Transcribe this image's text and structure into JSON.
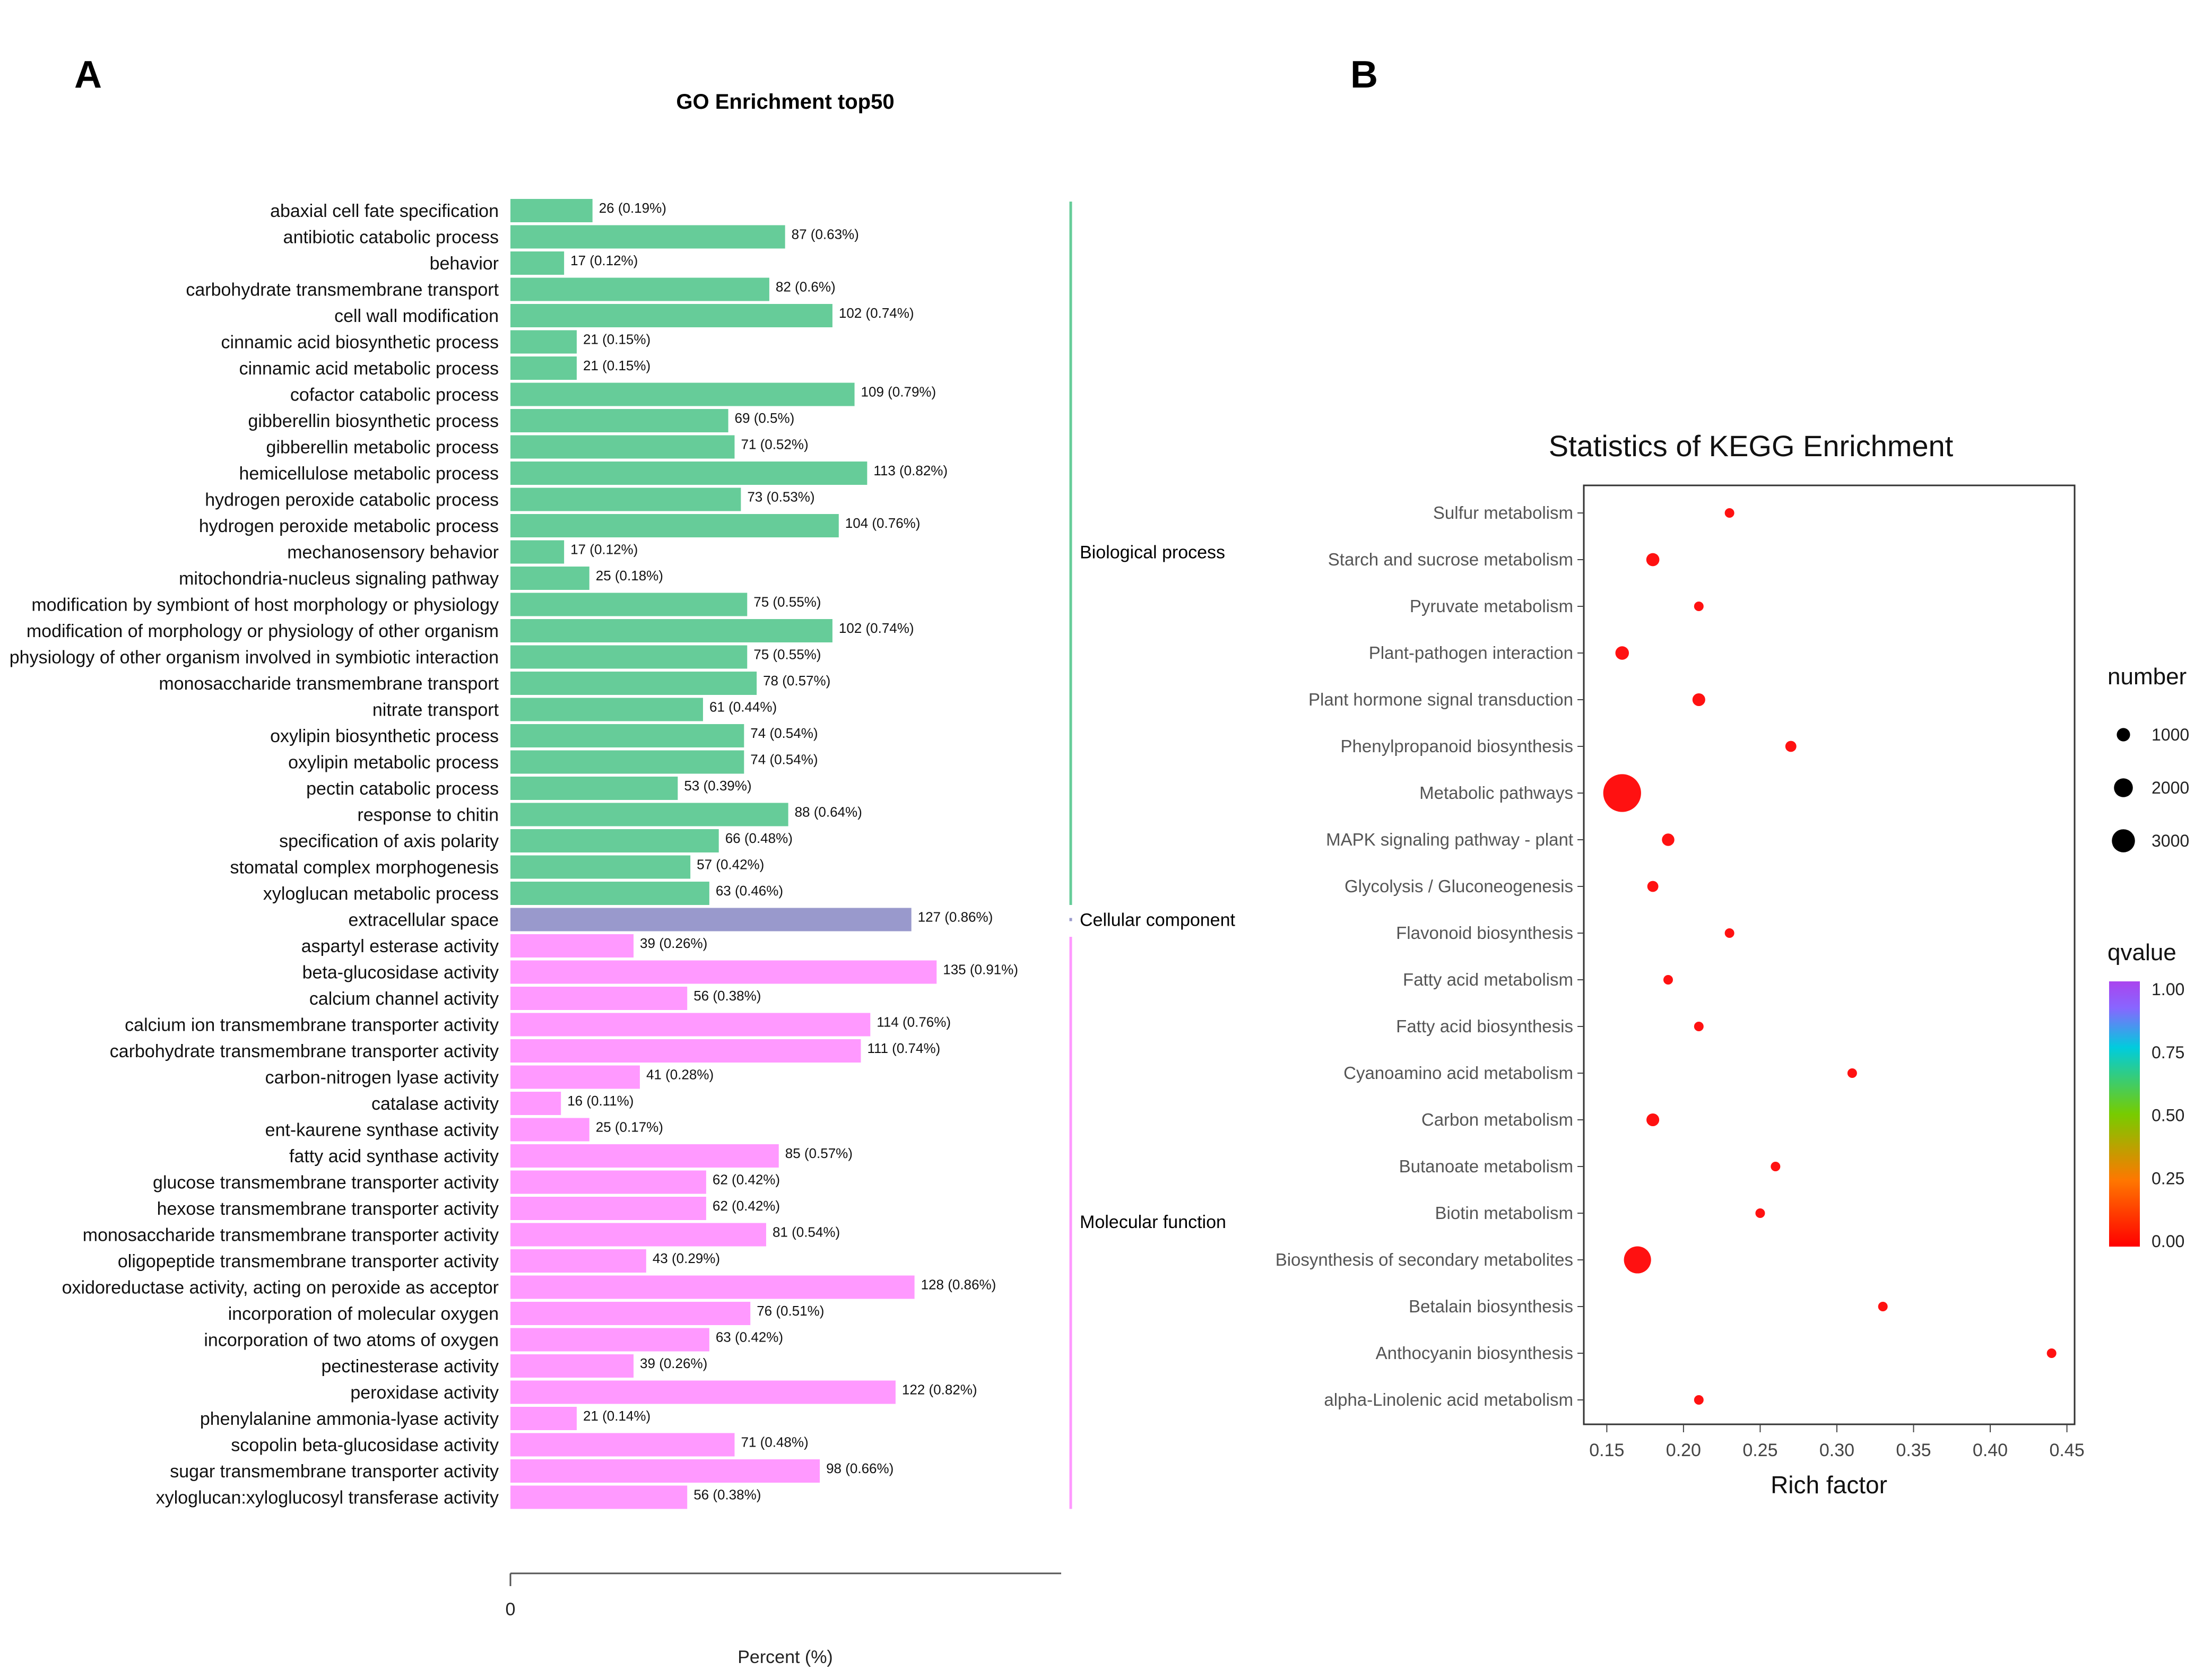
{
  "panels": {
    "a_label": "A",
    "b_label": "B"
  },
  "chart_data": [
    {
      "type": "bar",
      "orientation": "horizontal",
      "title": "GO Enrichment top50",
      "xlabel": "Percent (%)",
      "x_tick": "0",
      "colors": {
        "Biological process": "#66cc99",
        "Cellular component": "#9999cc",
        "Molecular function": "#ff99ff"
      },
      "groups": [
        {
          "name": "Biological process",
          "start": 0,
          "end": 26
        },
        {
          "name": "Cellular component",
          "start": 27,
          "end": 27
        },
        {
          "name": "Molecular function",
          "start": 28,
          "end": 49
        }
      ],
      "terms": [
        {
          "label": "abaxial cell fate specification",
          "category": "Biological process",
          "count": 26,
          "value_label": "26 (0.19%)"
        },
        {
          "label": "antibiotic catabolic process",
          "category": "Biological process",
          "count": 87,
          "value_label": "87 (0.63%)"
        },
        {
          "label": "behavior",
          "category": "Biological process",
          "count": 17,
          "value_label": "17 (0.12%)"
        },
        {
          "label": "carbohydrate transmembrane transport",
          "category": "Biological process",
          "count": 82,
          "value_label": "82 (0.6%)"
        },
        {
          "label": "cell wall modification",
          "category": "Biological process",
          "count": 102,
          "value_label": "102 (0.74%)"
        },
        {
          "label": "cinnamic acid biosynthetic process",
          "category": "Biological process",
          "count": 21,
          "value_label": "21 (0.15%)"
        },
        {
          "label": "cinnamic acid metabolic process",
          "category": "Biological process",
          "count": 21,
          "value_label": "21 (0.15%)"
        },
        {
          "label": "cofactor catabolic process",
          "category": "Biological process",
          "count": 109,
          "value_label": "109 (0.79%)"
        },
        {
          "label": "gibberellin biosynthetic process",
          "category": "Biological process",
          "count": 69,
          "value_label": "69 (0.5%)"
        },
        {
          "label": "gibberellin metabolic process",
          "category": "Biological process",
          "count": 71,
          "value_label": "71 (0.52%)"
        },
        {
          "label": "hemicellulose metabolic process",
          "category": "Biological process",
          "count": 113,
          "value_label": "113 (0.82%)"
        },
        {
          "label": "hydrogen peroxide catabolic process",
          "category": "Biological process",
          "count": 73,
          "value_label": "73 (0.53%)"
        },
        {
          "label": "hydrogen peroxide metabolic process",
          "category": "Biological process",
          "count": 104,
          "value_label": "104 (0.76%)"
        },
        {
          "label": "mechanosensory behavior",
          "category": "Biological process",
          "count": 17,
          "value_label": "17 (0.12%)"
        },
        {
          "label": "mitochondria-nucleus signaling pathway",
          "category": "Biological process",
          "count": 25,
          "value_label": "25 (0.18%)"
        },
        {
          "label": "modification by symbiont of host morphology or physiology",
          "category": "Biological process",
          "count": 75,
          "value_label": "75 (0.55%)"
        },
        {
          "label": "modification of morphology or physiology of other organism",
          "category": "Biological process",
          "count": 102,
          "value_label": "102 (0.74%)"
        },
        {
          "label": "physiology of other organism involved in symbiotic interaction",
          "category": "Biological process",
          "count": 75,
          "value_label": "75 (0.55%)"
        },
        {
          "label": "monosaccharide transmembrane transport",
          "category": "Biological process",
          "count": 78,
          "value_label": "78 (0.57%)"
        },
        {
          "label": "nitrate transport",
          "category": "Biological process",
          "count": 61,
          "value_label": "61 (0.44%)"
        },
        {
          "label": "oxylipin biosynthetic process",
          "category": "Biological process",
          "count": 74,
          "value_label": "74 (0.54%)"
        },
        {
          "label": "oxylipin metabolic process",
          "category": "Biological process",
          "count": 74,
          "value_label": "74 (0.54%)"
        },
        {
          "label": "pectin catabolic process",
          "category": "Biological process",
          "count": 53,
          "value_label": "53 (0.39%)"
        },
        {
          "label": "response to chitin",
          "category": "Biological process",
          "count": 88,
          "value_label": "88 (0.64%)"
        },
        {
          "label": "specification of axis polarity",
          "category": "Biological process",
          "count": 66,
          "value_label": "66 (0.48%)"
        },
        {
          "label": "stomatal complex morphogenesis",
          "category": "Biological process",
          "count": 57,
          "value_label": "57 (0.42%)"
        },
        {
          "label": "xyloglucan metabolic process",
          "category": "Biological process",
          "count": 63,
          "value_label": "63 (0.46%)"
        },
        {
          "label": "extracellular space",
          "category": "Cellular component",
          "count": 127,
          "value_label": "127 (0.86%)"
        },
        {
          "label": "aspartyl esterase activity",
          "category": "Molecular function",
          "count": 39,
          "value_label": "39 (0.26%)"
        },
        {
          "label": "beta-glucosidase activity",
          "category": "Molecular function",
          "count": 135,
          "value_label": "135 (0.91%)"
        },
        {
          "label": "calcium channel activity",
          "category": "Molecular function",
          "count": 56,
          "value_label": "56 (0.38%)"
        },
        {
          "label": "calcium ion transmembrane transporter activity",
          "category": "Molecular function",
          "count": 114,
          "value_label": "114 (0.76%)"
        },
        {
          "label": "carbohydrate transmembrane transporter activity",
          "category": "Molecular function",
          "count": 111,
          "value_label": "111 (0.74%)"
        },
        {
          "label": "carbon-nitrogen lyase activity",
          "category": "Molecular function",
          "count": 41,
          "value_label": "41 (0.28%)"
        },
        {
          "label": "catalase activity",
          "category": "Molecular function",
          "count": 16,
          "value_label": "16 (0.11%)"
        },
        {
          "label": "ent-kaurene synthase activity",
          "category": "Molecular function",
          "count": 25,
          "value_label": "25 (0.17%)"
        },
        {
          "label": "fatty acid synthase activity",
          "category": "Molecular function",
          "count": 85,
          "value_label": "85 (0.57%)"
        },
        {
          "label": "glucose transmembrane transporter activity",
          "category": "Molecular function",
          "count": 62,
          "value_label": "62 (0.42%)"
        },
        {
          "label": "hexose transmembrane transporter activity",
          "category": "Molecular function",
          "count": 62,
          "value_label": "62 (0.42%)"
        },
        {
          "label": "monosaccharide transmembrane transporter activity",
          "category": "Molecular function",
          "count": 81,
          "value_label": "81 (0.54%)"
        },
        {
          "label": "oligopeptide transmembrane transporter activity",
          "category": "Molecular function",
          "count": 43,
          "value_label": "43 (0.29%)"
        },
        {
          "label": "oxidoreductase activity, acting on peroxide as acceptor",
          "category": "Molecular function",
          "count": 128,
          "value_label": "128 (0.86%)"
        },
        {
          "label": "incorporation of molecular oxygen",
          "category": "Molecular function",
          "count": 76,
          "value_label": "76 (0.51%)"
        },
        {
          "label": "incorporation of two atoms of oxygen",
          "category": "Molecular function",
          "count": 63,
          "value_label": "63 (0.42%)"
        },
        {
          "label": "pectinesterase activity",
          "category": "Molecular function",
          "count": 39,
          "value_label": "39 (0.26%)"
        },
        {
          "label": "peroxidase activity",
          "category": "Molecular function",
          "count": 122,
          "value_label": "122 (0.82%)"
        },
        {
          "label": "phenylalanine ammonia-lyase activity",
          "category": "Molecular function",
          "count": 21,
          "value_label": "21 (0.14%)"
        },
        {
          "label": "scopolin beta-glucosidase activity",
          "category": "Molecular function",
          "count": 71,
          "value_label": "71 (0.48%)"
        },
        {
          "label": "sugar transmembrane transporter activity",
          "category": "Molecular function",
          "count": 98,
          "value_label": "98 (0.66%)"
        },
        {
          "label": "xyloglucan:xyloglucosyl transferase activity",
          "category": "Molecular function",
          "count": 56,
          "value_label": "56 (0.38%)"
        }
      ]
    },
    {
      "type": "scatter",
      "title": "Statistics of KEGG Enrichment",
      "xlabel": "Rich factor",
      "xlim": [
        0.135,
        0.455
      ],
      "xticks": [
        0.15,
        0.2,
        0.25,
        0.3,
        0.35,
        0.4,
        0.45
      ],
      "xtick_labels": [
        "0.15",
        "0.20",
        "0.25",
        "0.30",
        "0.35",
        "0.40",
        "0.45"
      ],
      "point_color": "#ff1111",
      "pathways": [
        {
          "name": "Sulfur metabolism",
          "rich_factor": 0.23,
          "number": 150,
          "qvalue": 0.0
        },
        {
          "name": "Starch and sucrose metabolism",
          "rich_factor": 0.18,
          "number": 420,
          "qvalue": 0.0
        },
        {
          "name": "Pyruvate metabolism",
          "rich_factor": 0.21,
          "number": 200,
          "qvalue": 0.0
        },
        {
          "name": "Plant-pathogen interaction",
          "rich_factor": 0.16,
          "number": 450,
          "qvalue": 0.0
        },
        {
          "name": "Plant hormone signal transduction",
          "rich_factor": 0.21,
          "number": 400,
          "qvalue": 0.0
        },
        {
          "name": "Phenylpropanoid biosynthesis",
          "rich_factor": 0.27,
          "number": 300,
          "qvalue": 0.0
        },
        {
          "name": "Metabolic pathways",
          "rich_factor": 0.16,
          "number": 3500,
          "qvalue": 0.0
        },
        {
          "name": "MAPK signaling pathway - plant",
          "rich_factor": 0.19,
          "number": 380,
          "qvalue": 0.0
        },
        {
          "name": "Glycolysis / Gluconeogenesis",
          "rich_factor": 0.18,
          "number": 300,
          "qvalue": 0.0
        },
        {
          "name": "Flavonoid biosynthesis",
          "rich_factor": 0.23,
          "number": 150,
          "qvalue": 0.0
        },
        {
          "name": "Fatty acid metabolism",
          "rich_factor": 0.19,
          "number": 200,
          "qvalue": 0.0
        },
        {
          "name": "Fatty acid biosynthesis",
          "rich_factor": 0.21,
          "number": 150,
          "qvalue": 0.0
        },
        {
          "name": "Cyanoamino acid metabolism",
          "rich_factor": 0.31,
          "number": 180,
          "qvalue": 0.0
        },
        {
          "name": "Carbon metabolism",
          "rich_factor": 0.18,
          "number": 400,
          "qvalue": 0.0
        },
        {
          "name": "Butanoate metabolism",
          "rich_factor": 0.26,
          "number": 150,
          "qvalue": 0.0
        },
        {
          "name": "Biotin metabolism",
          "rich_factor": 0.25,
          "number": 130,
          "qvalue": 0.0
        },
        {
          "name": "Biosynthesis of secondary metabolites",
          "rich_factor": 0.17,
          "number": 1800,
          "qvalue": 0.0
        },
        {
          "name": "Betalain biosynthesis",
          "rich_factor": 0.33,
          "number": 100,
          "qvalue": 0.0
        },
        {
          "name": "Anthocyanin biosynthesis",
          "rich_factor": 0.44,
          "number": 80,
          "qvalue": 0.0
        },
        {
          "name": "alpha-Linolenic acid metabolism",
          "rich_factor": 0.21,
          "number": 180,
          "qvalue": 0.0
        }
      ],
      "size_legend": {
        "title": "number",
        "values": [
          1000,
          2000,
          3000
        ],
        "labels": [
          "1000",
          "2000",
          "3000"
        ]
      },
      "color_legend": {
        "title": "qvalue",
        "ticks": [
          1.0,
          0.75,
          0.5,
          0.25,
          0.0
        ],
        "tick_labels": [
          "1.00",
          "0.75",
          "0.50",
          "0.25",
          "0.00"
        ],
        "gradient": [
          "#ff0000",
          "#ff7700",
          "#77cc00",
          "#00ccdd",
          "#8866ff",
          "#aa44ee"
        ]
      }
    }
  ]
}
